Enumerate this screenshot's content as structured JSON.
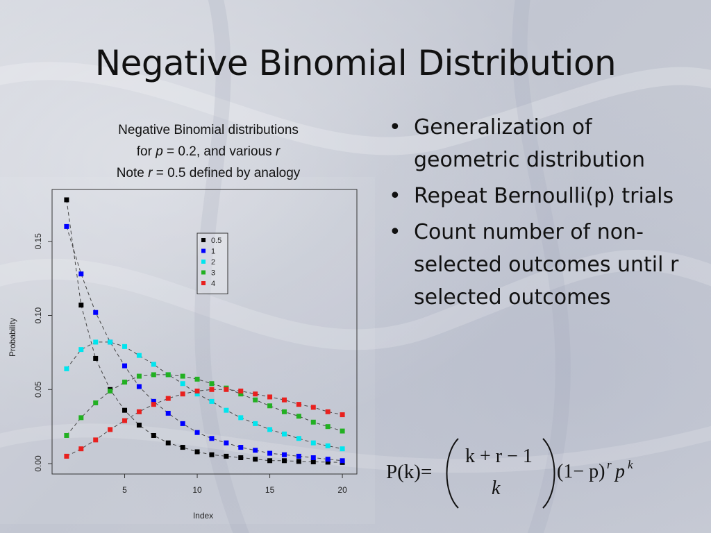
{
  "slide": {
    "title": "Negative Binomial Distribution",
    "caption": {
      "line1": "Negative Binomial distributions",
      "line2_prefix": "for ",
      "line2_var": "p",
      "line2_mid": " = 0.2, and various ",
      "line2_var2": "r",
      "line3_prefix": "Note ",
      "line3_var": "r",
      "line3_suffix": " = 0.5 defined by analogy"
    },
    "bullets": [
      "Generalization of geometric distribution",
      "Repeat Bernoulli(p) trials",
      "Count number of non-selected outcomes until r selected outcomes"
    ],
    "bullet_char": "•",
    "formula": {
      "lhs": "P(k)=",
      "binom_top": "k + r − 1",
      "binom_bottom": "k",
      "rhs": "(1− p)",
      "exp1": "r",
      "p": "p",
      "exp2": "k"
    }
  },
  "chart_data": {
    "type": "scatter",
    "xlabel": "Index",
    "ylabel": "Probability",
    "xlim": [
      0,
      21
    ],
    "ylim": [
      -0.007,
      0.185
    ],
    "x_ticks": [
      5,
      10,
      15,
      20
    ],
    "y_ticks": [
      0.0,
      0.05,
      0.1,
      0.15
    ],
    "y_tick_labels": [
      "0.00",
      "0.05",
      "0.10",
      "0.15"
    ],
    "grid": false,
    "legend": "top-center",
    "markers": "filled squares joined by dashed lines",
    "x": [
      1,
      2,
      3,
      4,
      5,
      6,
      7,
      8,
      9,
      10,
      11,
      12,
      13,
      14,
      15,
      16,
      17,
      18,
      19,
      20
    ],
    "series": [
      {
        "name": "0.5",
        "color": "#000000",
        "values": [
          0.178,
          0.107,
          0.071,
          0.05,
          0.036,
          0.026,
          0.019,
          0.014,
          0.011,
          0.008,
          0.006,
          0.005,
          0.004,
          0.003,
          0.002,
          0.002,
          0.0015,
          0.0012,
          0.001,
          0.0008
        ]
      },
      {
        "name": "1",
        "color": "#0000ff",
        "values": [
          0.16,
          0.128,
          0.102,
          0.082,
          0.066,
          0.052,
          0.042,
          0.034,
          0.027,
          0.021,
          0.017,
          0.014,
          0.011,
          0.009,
          0.007,
          0.006,
          0.005,
          0.004,
          0.003,
          0.002
        ]
      },
      {
        "name": "2",
        "color": "#00e5ee",
        "values": [
          0.064,
          0.077,
          0.082,
          0.082,
          0.079,
          0.073,
          0.067,
          0.06,
          0.054,
          0.047,
          0.042,
          0.036,
          0.031,
          0.027,
          0.023,
          0.02,
          0.017,
          0.014,
          0.012,
          0.01
        ]
      },
      {
        "name": "3",
        "color": "#22b022",
        "values": [
          0.019,
          0.031,
          0.041,
          0.049,
          0.055,
          0.059,
          0.06,
          0.06,
          0.059,
          0.057,
          0.054,
          0.051,
          0.047,
          0.043,
          0.039,
          0.035,
          0.032,
          0.028,
          0.025,
          0.022
        ]
      },
      {
        "name": "4",
        "color": "#e8201e",
        "values": [
          0.005,
          0.01,
          0.016,
          0.023,
          0.029,
          0.035,
          0.04,
          0.044,
          0.047,
          0.049,
          0.05,
          0.05,
          0.049,
          0.047,
          0.045,
          0.043,
          0.04,
          0.038,
          0.035,
          0.033
        ]
      }
    ]
  }
}
